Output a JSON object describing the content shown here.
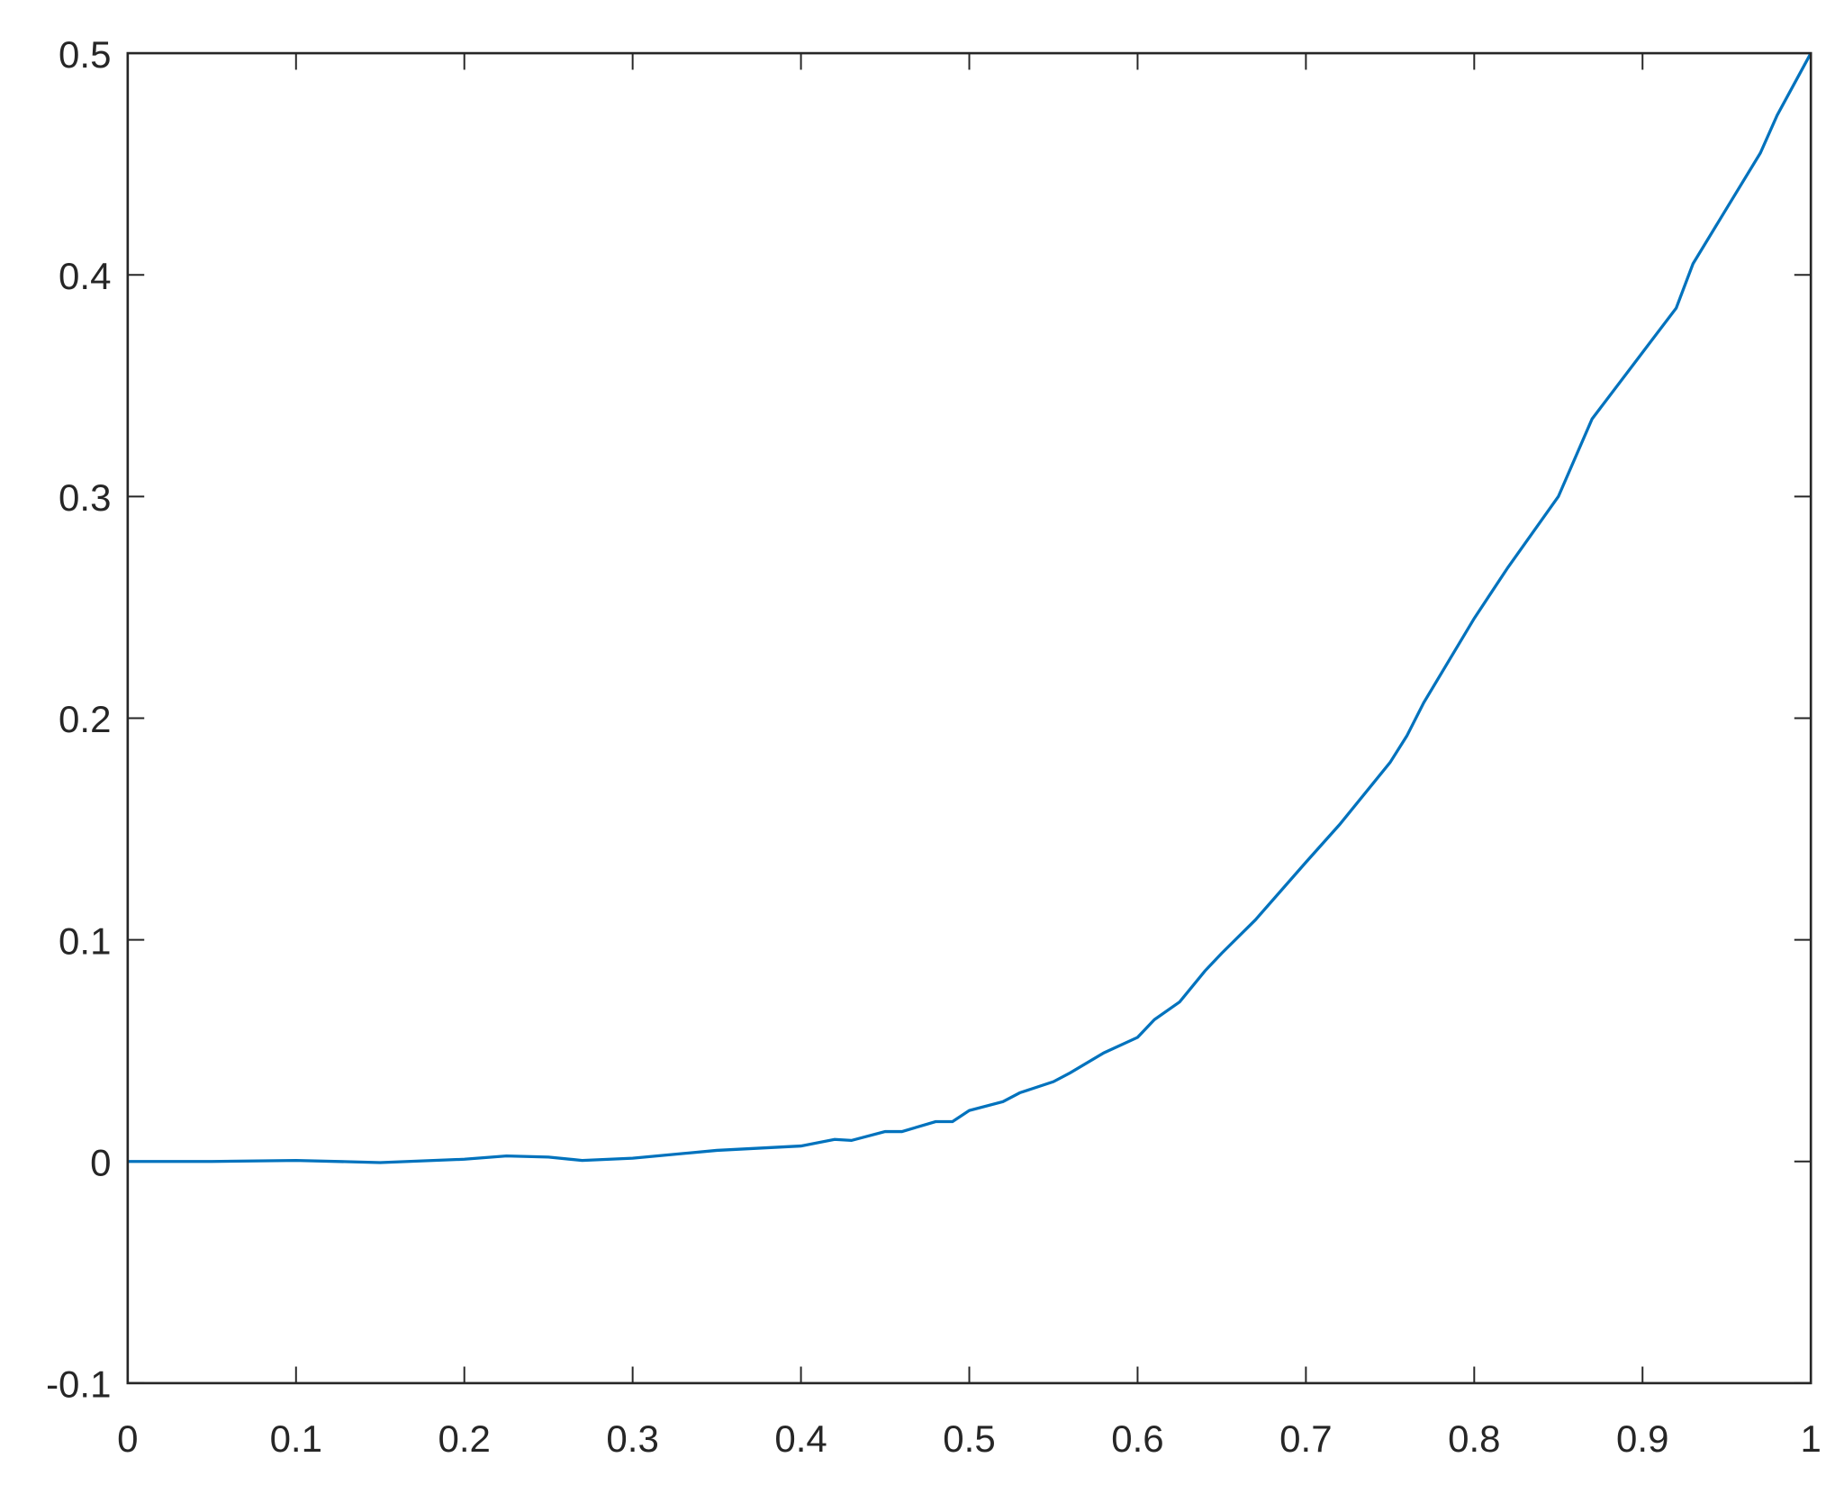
{
  "chart_data": {
    "type": "line",
    "title": "",
    "xlabel": "",
    "ylabel": "",
    "xlim": [
      0,
      1
    ],
    "ylim": [
      -0.1,
      0.5
    ],
    "grid": false,
    "box": true,
    "x_ticks": [
      "0",
      "0.1",
      "0.2",
      "0.3",
      "0.4",
      "0.5",
      "0.6",
      "0.7",
      "0.8",
      "0.9",
      "1"
    ],
    "y_ticks": [
      "-0.1",
      "0",
      "0.1",
      "0.2",
      "0.3",
      "0.4",
      "0.5"
    ],
    "colors": {
      "line": "#0072BD",
      "axes": "#262626"
    },
    "series": [
      {
        "x": [
          0,
          0.05,
          0.1,
          0.15,
          0.2,
          0.225,
          0.25,
          0.27,
          0.3,
          0.35,
          0.4,
          0.42,
          0.43,
          0.45,
          0.46,
          0.48,
          0.49,
          0.5,
          0.52,
          0.53,
          0.55,
          0.56,
          0.58,
          0.6,
          0.61,
          0.625,
          0.64,
          0.65,
          0.67,
          0.7,
          0.72,
          0.75,
          0.76,
          0.77,
          0.8,
          0.82,
          0.85,
          0.87,
          0.9,
          0.92,
          0.93,
          0.95,
          0.97,
          0.98,
          1
        ],
        "y": [
          0,
          0,
          0.0005,
          -0.0005,
          0.001,
          0.0025,
          0.002,
          0.0005,
          0.0015,
          0.005,
          0.007,
          0.01,
          0.0095,
          0.0135,
          0.0135,
          0.018,
          0.018,
          0.023,
          0.027,
          0.031,
          0.036,
          0.04,
          0.049,
          0.056,
          0.064,
          0.072,
          0.086,
          0.094,
          0.109,
          0.135,
          0.152,
          0.18,
          0.192,
          0.207,
          0.245,
          0.268,
          0.3,
          0.335,
          0.365,
          0.385,
          0.405,
          0.43,
          0.455,
          0.472,
          0.5
        ]
      }
    ]
  }
}
